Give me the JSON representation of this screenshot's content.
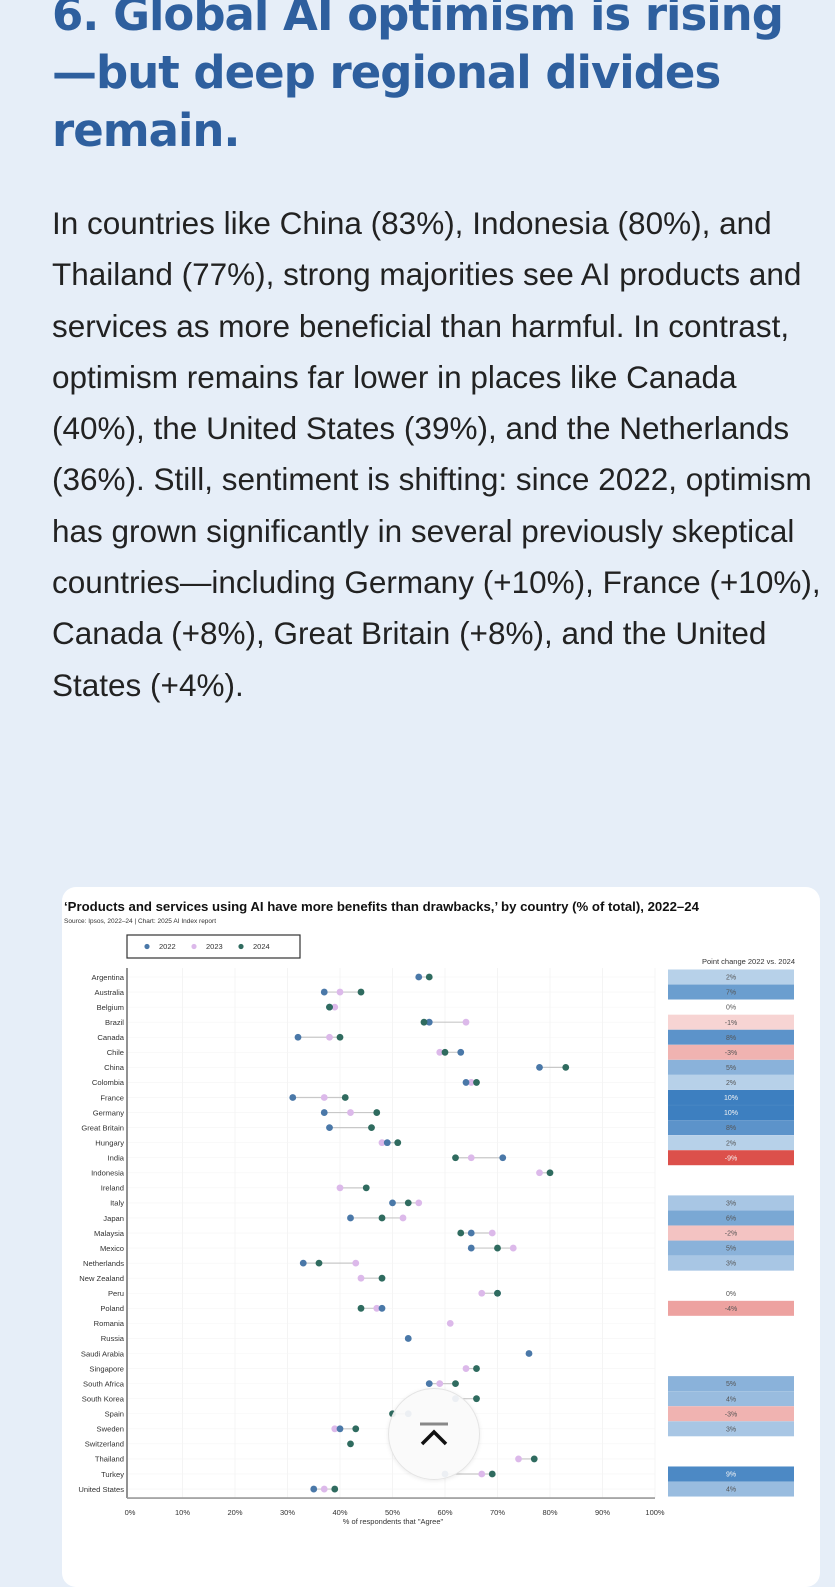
{
  "article": {
    "heading": "6. Global AI optimism is rising—but deep regional divides remain.",
    "body": "In countries like China (83%), Indonesia (80%), and Thailand (77%), strong majorities see AI products and services as more beneficial than harmful. In contrast, optimism remains far lower in places like Canada (40%), the United States (39%), and the Netherlands (36%). Still, sentiment is shifting: since 2022, optimism has grown significantly in several previously skeptical countries—including Germany (+10%), France (+10%), Canada (+8%), Great Britain (+8%), and the United States (+4%)."
  },
  "scroll_top_button": {
    "icon": "chevron-up-to-top-icon"
  },
  "chart_data": {
    "type": "dot-plot",
    "title": "‘Products and services using AI have more benefits than drawbacks,’ by country (% of total), 2022–24",
    "source": "Source: Ipsos, 2022–24 | Chart: 2025 AI Index report",
    "xlabel": "% of respondents that \"Agree\"",
    "xlim": [
      0,
      100
    ],
    "xticks": [
      "0%",
      "10%",
      "20%",
      "30%",
      "40%",
      "50%",
      "60%",
      "70%",
      "80%",
      "90%",
      "100%"
    ],
    "grid": true,
    "legend": {
      "placement": "top-left",
      "entries": [
        "2022",
        "2023",
        "2024"
      ]
    },
    "colors": {
      "2022": "#4a78a8",
      "2023": "#dcb9ea",
      "2024": "#2f6b5f",
      "positive": "#3d7fc0",
      "negative": "#d9403a"
    },
    "change_header": "Point change 2022 vs. 2024",
    "countries": [
      {
        "name": "Argentina",
        "y2022": 55,
        "y2023": null,
        "y2024": 57,
        "change": "2%"
      },
      {
        "name": "Australia",
        "y2022": 37,
        "y2023": 40,
        "y2024": 44,
        "change": "7%"
      },
      {
        "name": "Belgium",
        "y2022": 38,
        "y2023": 39,
        "y2024": 38,
        "change": "0%"
      },
      {
        "name": "Brazil",
        "y2022": 57,
        "y2023": 64,
        "y2024": 56,
        "change": "-1%"
      },
      {
        "name": "Canada",
        "y2022": 32,
        "y2023": 38,
        "y2024": 40,
        "change": "8%"
      },
      {
        "name": "Chile",
        "y2022": 63,
        "y2023": 59,
        "y2024": 60,
        "change": "-3%"
      },
      {
        "name": "China",
        "y2022": 78,
        "y2023": null,
        "y2024": 83,
        "change": "5%"
      },
      {
        "name": "Colombia",
        "y2022": 64,
        "y2023": 65,
        "y2024": 66,
        "change": "2%"
      },
      {
        "name": "France",
        "y2022": 31,
        "y2023": 37,
        "y2024": 41,
        "change": "10%"
      },
      {
        "name": "Germany",
        "y2022": 37,
        "y2023": 42,
        "y2024": 47,
        "change": "10%"
      },
      {
        "name": "Great Britain",
        "y2022": 38,
        "y2023": null,
        "y2024": 46,
        "change": "8%"
      },
      {
        "name": "Hungary",
        "y2022": 49,
        "y2023": 48,
        "y2024": 51,
        "change": "2%"
      },
      {
        "name": "India",
        "y2022": 71,
        "y2023": 65,
        "y2024": 62,
        "change": "-9%"
      },
      {
        "name": "Indonesia",
        "y2022": null,
        "y2023": 78,
        "y2024": 80,
        "change": null
      },
      {
        "name": "Ireland",
        "y2022": null,
        "y2023": 40,
        "y2024": 45,
        "change": null
      },
      {
        "name": "Italy",
        "y2022": 50,
        "y2023": 55,
        "y2024": 53,
        "change": "3%"
      },
      {
        "name": "Japan",
        "y2022": 42,
        "y2023": 52,
        "y2024": 48,
        "change": "6%"
      },
      {
        "name": "Malaysia",
        "y2022": 65,
        "y2023": 69,
        "y2024": 63,
        "change": "-2%"
      },
      {
        "name": "Mexico",
        "y2022": 65,
        "y2023": 73,
        "y2024": 70,
        "change": "5%"
      },
      {
        "name": "Netherlands",
        "y2022": 33,
        "y2023": 43,
        "y2024": 36,
        "change": "3%"
      },
      {
        "name": "New Zealand",
        "y2022": null,
        "y2023": 44,
        "y2024": 48,
        "change": null
      },
      {
        "name": "Peru",
        "y2022": 70,
        "y2023": 67,
        "y2024": 70,
        "change": "0%"
      },
      {
        "name": "Poland",
        "y2022": 48,
        "y2023": 47,
        "y2024": 44,
        "change": "-4%"
      },
      {
        "name": "Romania",
        "y2022": null,
        "y2023": 61,
        "y2024": null,
        "change": null
      },
      {
        "name": "Russia",
        "y2022": 53,
        "y2023": null,
        "y2024": null,
        "change": null
      },
      {
        "name": "Saudi Arabia",
        "y2022": 76,
        "y2023": null,
        "y2024": null,
        "change": null
      },
      {
        "name": "Singapore",
        "y2022": null,
        "y2023": 64,
        "y2024": 66,
        "change": null
      },
      {
        "name": "South Africa",
        "y2022": 57,
        "y2023": 59,
        "y2024": 62,
        "change": "5%"
      },
      {
        "name": "South Korea",
        "y2022": 62,
        "y2023": null,
        "y2024": 66,
        "change": "4%"
      },
      {
        "name": "Spain",
        "y2022": 53,
        "y2023": null,
        "y2024": 50,
        "change": "-3%"
      },
      {
        "name": "Sweden",
        "y2022": 40,
        "y2023": 39,
        "y2024": 43,
        "change": "3%"
      },
      {
        "name": "Switzerland",
        "y2022": null,
        "y2023": null,
        "y2024": 42,
        "change": null
      },
      {
        "name": "Thailand",
        "y2022": null,
        "y2023": 74,
        "y2024": 77,
        "change": null
      },
      {
        "name": "Turkey",
        "y2022": 60,
        "y2023": 67,
        "y2024": 69,
        "change": "9%"
      },
      {
        "name": "United States",
        "y2022": 35,
        "y2023": 37,
        "y2024": 39,
        "change": "4%"
      }
    ]
  }
}
